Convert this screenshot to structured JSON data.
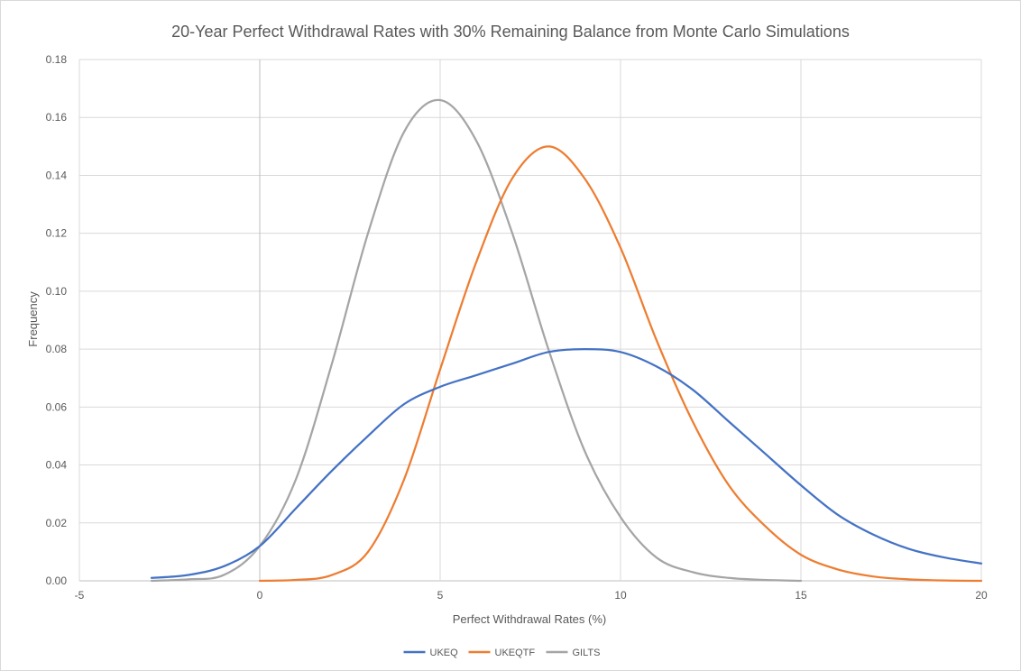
{
  "chart_data": {
    "type": "line",
    "title": "20-Year Perfect Withdrawal Rates with 30% Remaining Balance from Monte Carlo Simulations",
    "xlabel": "Perfect Withdrawal Rates (%)",
    "ylabel": "Frequency",
    "xlim": [
      -5,
      20
    ],
    "ylim": [
      0,
      0.18
    ],
    "xticks": [
      "-5",
      "0",
      "5",
      "10",
      "15",
      "20"
    ],
    "yticks": [
      "0.00",
      "0.02",
      "0.04",
      "0.06",
      "0.08",
      "0.10",
      "0.12",
      "0.14",
      "0.16",
      "0.18"
    ],
    "grid": true,
    "legend_position": "bottom",
    "series": [
      {
        "name": "UKEQ",
        "color": "#4472C4",
        "x": [
          -3,
          -2,
          -1,
          0,
          1,
          2,
          3,
          4,
          5,
          6,
          7,
          8,
          9,
          10,
          11,
          12,
          13,
          14,
          15,
          16,
          17,
          18,
          19,
          20
        ],
        "y": [
          0.001,
          0.002,
          0.005,
          0.012,
          0.025,
          0.038,
          0.05,
          0.061,
          0.067,
          0.071,
          0.075,
          0.079,
          0.08,
          0.079,
          0.074,
          0.066,
          0.055,
          0.044,
          0.033,
          0.023,
          0.016,
          0.011,
          0.008,
          0.006
        ]
      },
      {
        "name": "UKEQTF",
        "color": "#ED7D31",
        "x": [
          0,
          1,
          2,
          3,
          4,
          5,
          6,
          7,
          8,
          9,
          10,
          11,
          12,
          13,
          14,
          15,
          16,
          17,
          18,
          19,
          20
        ],
        "y": [
          0.0,
          0.0003,
          0.002,
          0.01,
          0.035,
          0.073,
          0.11,
          0.139,
          0.15,
          0.139,
          0.115,
          0.083,
          0.055,
          0.033,
          0.019,
          0.009,
          0.004,
          0.0015,
          0.0005,
          0.0001,
          0.0
        ]
      },
      {
        "name": "GILTS",
        "color": "#A5A5A5",
        "x": [
          -3,
          -2,
          -1,
          0,
          1,
          2,
          3,
          4,
          5,
          6,
          7,
          8,
          9,
          10,
          11,
          12,
          13,
          14,
          15
        ],
        "y": [
          0.0,
          0.0005,
          0.002,
          0.012,
          0.035,
          0.075,
          0.12,
          0.155,
          0.166,
          0.152,
          0.12,
          0.08,
          0.045,
          0.022,
          0.008,
          0.003,
          0.001,
          0.0003,
          0.0
        ]
      }
    ]
  }
}
